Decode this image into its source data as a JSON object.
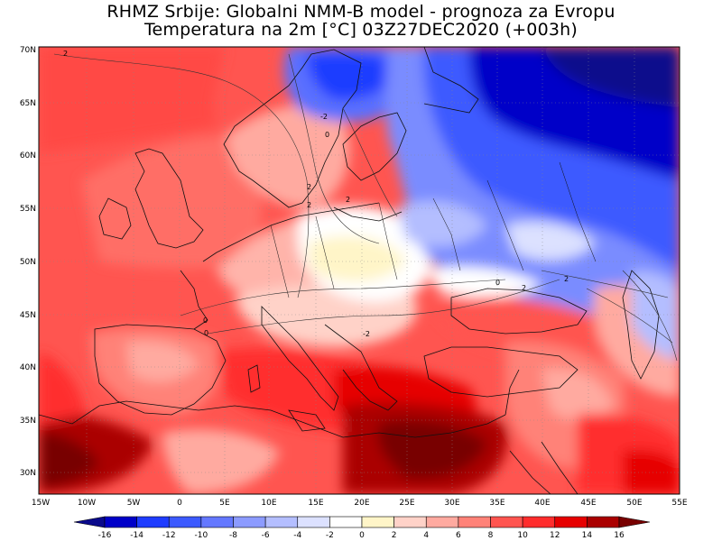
{
  "header": {
    "title_line1": "RHMZ Srbije: Globalni NMM-B model - prognoza za Evropu",
    "title_line2": "Temperatura na 2m [°C] 03Z27DEC2020 (+003h)"
  },
  "map": {
    "lat_ticks": [
      "70N",
      "65N",
      "60N",
      "55N",
      "50N",
      "45N",
      "40N",
      "35N",
      "30N"
    ],
    "lon_ticks": [
      "15W",
      "10W",
      "5W",
      "0",
      "5E",
      "10E",
      "15E",
      "20E",
      "25E",
      "30E",
      "35E",
      "40E",
      "45E",
      "50E",
      "55E"
    ],
    "contour_labels": [
      "2",
      "-2",
      "0",
      "2",
      "2",
      "0",
      "0",
      "-2",
      "2",
      "0",
      "2",
      "2"
    ]
  },
  "colorbar": {
    "labels": [
      "-16",
      "-14",
      "-12",
      "-10",
      "-8",
      "-6",
      "-4",
      "-2",
      "0",
      "2",
      "4",
      "6",
      "8",
      "10",
      "12",
      "14",
      "16"
    ],
    "colors": [
      "#0a0a8c",
      "#0000c8",
      "#1e3cff",
      "#3c5aff",
      "#6478ff",
      "#8c9bff",
      "#b4beff",
      "#dce1ff",
      "#ffffff",
      "#fff5c8",
      "#ffd2c8",
      "#ffaaa0",
      "#ff8278",
      "#ff5550",
      "#ff2d2d",
      "#e60000",
      "#aa0000",
      "#780000"
    ]
  }
}
